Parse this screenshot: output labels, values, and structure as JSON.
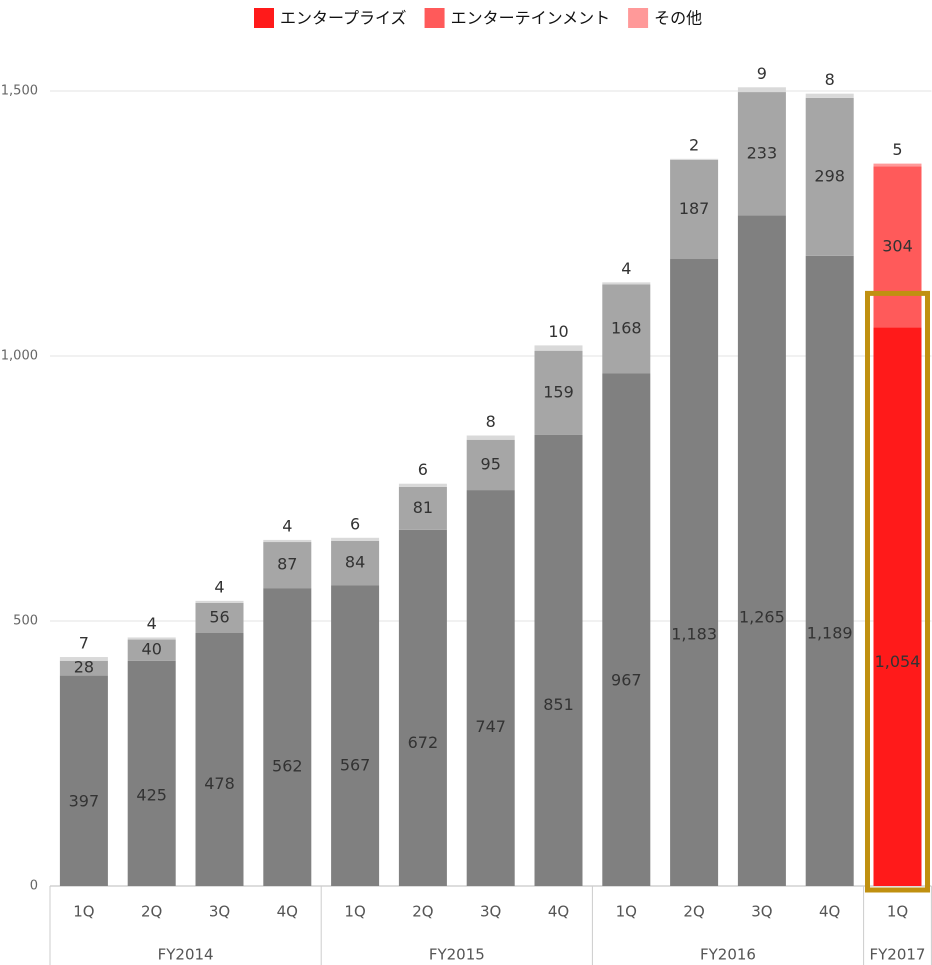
{
  "chart_data": {
    "type": "stacked_bar",
    "categories": [
      "1Q",
      "2Q",
      "3Q",
      "4Q",
      "1Q",
      "2Q",
      "3Q",
      "4Q",
      "1Q",
      "2Q",
      "3Q",
      "4Q",
      "1Q"
    ],
    "group_labels": [
      "FY2014",
      null,
      null,
      null,
      "FY2015",
      null,
      null,
      null,
      "FY2016",
      null,
      null,
      null,
      "FY2017"
    ],
    "series": [
      {
        "name": "エンタープライズ",
        "color": "#ff1a1a",
        "muted_color": "#808080",
        "values": [
          397,
          425,
          478,
          562,
          567,
          672,
          747,
          851,
          967,
          1183,
          1265,
          1189,
          1054
        ],
        "value_labels": [
          "397",
          "425",
          "478",
          "562",
          "567",
          "672",
          "747",
          "851",
          "967",
          "1,183",
          "1,265",
          "1,189",
          "1,054"
        ]
      },
      {
        "name": "エンターテインメント",
        "color": "#ff5a5a",
        "muted_color": "#a6a6a6",
        "values": [
          28,
          40,
          56,
          87,
          84,
          81,
          95,
          159,
          168,
          187,
          233,
          298,
          304
        ]
      },
      {
        "name": "その他",
        "color": "#ff9999",
        "muted_color": "#d9d9d9",
        "values": [
          7,
          4,
          4,
          4,
          6,
          6,
          8,
          10,
          4,
          2,
          9,
          8,
          5
        ]
      }
    ],
    "highlight_index": 12,
    "highlight_box_color": "#c09010",
    "ylim": [
      0,
      1500
    ],
    "yticks": [
      0,
      500,
      {
        "value": 1000,
        "label": "1,000"
      },
      {
        "value": 1500,
        "label": "1,500"
      }
    ],
    "grid": true,
    "legend": "top"
  }
}
